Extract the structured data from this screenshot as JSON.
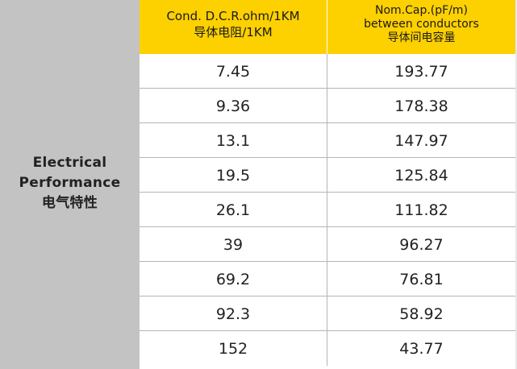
{
  "sidebar": {
    "line1": "Electrical",
    "line2": "Performance",
    "line3": "电气特性"
  },
  "headers": {
    "col1_line1": "Cond. D.C.R.ohm/1KM",
    "col1_line2": "导体电阻/1KM",
    "col2_line1": "Nom.Cap.(pF/m)",
    "col2_line2": "between conductors",
    "col2_line3": "导体间电容量"
  },
  "rows": [
    {
      "resistance": "7.45",
      "capacitance": "193.77"
    },
    {
      "resistance": "9.36",
      "capacitance": "178.38"
    },
    {
      "resistance": "13.1",
      "capacitance": "147.97"
    },
    {
      "resistance": "19.5",
      "capacitance": "125.84"
    },
    {
      "resistance": "26.1",
      "capacitance": "111.82"
    },
    {
      "resistance": "39",
      "capacitance": "96.27"
    },
    {
      "resistance": "69.2",
      "capacitance": "76.81"
    },
    {
      "resistance": "92.3",
      "capacitance": "58.92"
    },
    {
      "resistance": "152",
      "capacitance": "43.77"
    }
  ],
  "colors": {
    "header_bg": "#fdd000",
    "sidebar_bg": "#c3c3c3",
    "grid_line": "#b5b5b5"
  }
}
